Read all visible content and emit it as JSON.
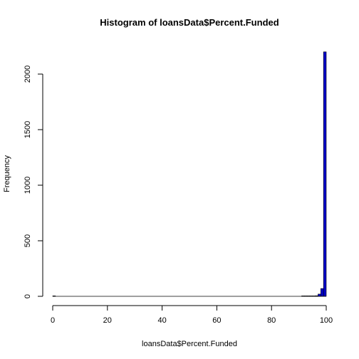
{
  "chart_data": {
    "type": "bar",
    "title": "Histogram of loansData$Percent.Funded",
    "xlabel": "loansData$Percent.Funded",
    "ylabel": "Frequency",
    "xlim": [
      0,
      100
    ],
    "ylim": [
      0,
      2200
    ],
    "x_ticks": [
      0,
      20,
      40,
      60,
      80,
      100
    ],
    "y_ticks": [
      0,
      500,
      1000,
      1500,
      2000
    ],
    "bin_width": 1,
    "bins": [
      {
        "x0": 0,
        "x1": 1,
        "count": 4
      },
      {
        "x0": 91,
        "x1": 92,
        "count": 2
      },
      {
        "x0": 92,
        "x1": 93,
        "count": 2
      },
      {
        "x0": 93,
        "x1": 94,
        "count": 1
      },
      {
        "x0": 94,
        "x1": 95,
        "count": 2
      },
      {
        "x0": 95,
        "x1": 96,
        "count": 3
      },
      {
        "x0": 96,
        "x1": 97,
        "count": 5
      },
      {
        "x0": 97,
        "x1": 98,
        "count": 20
      },
      {
        "x0": 98,
        "x1": 99,
        "count": 70
      },
      {
        "x0": 99,
        "x1": 100,
        "count": 2200
      }
    ],
    "grid": false,
    "bar_color": "#0000cc"
  }
}
